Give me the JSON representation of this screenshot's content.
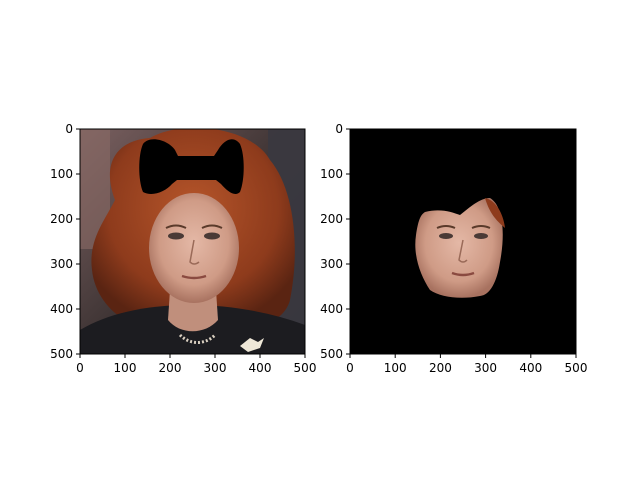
{
  "chart_data": [
    {
      "type": "image",
      "panel": "left",
      "title": "",
      "xlabel": "",
      "ylabel": "",
      "xlim": [
        0,
        500
      ],
      "ylim": [
        500,
        0
      ],
      "xticks": [
        0,
        100,
        200,
        300,
        400,
        500
      ],
      "yticks": [
        0,
        100,
        200,
        300,
        400,
        500
      ],
      "content": "face photo with black bow-tie shaped overlay at top center",
      "overlay": {
        "shape": "bow-tie",
        "color": "#000000",
        "x_range": [
          135,
          350
        ],
        "y_range": [
          20,
          150
        ]
      }
    },
    {
      "type": "image",
      "panel": "right",
      "title": "",
      "xlabel": "",
      "ylabel": "",
      "xlim": [
        0,
        500
      ],
      "ylim": [
        500,
        0
      ],
      "xticks": [
        0,
        100,
        200,
        300,
        400,
        500
      ],
      "yticks": [
        0,
        100,
        200,
        300,
        400,
        500
      ],
      "content": "black background with segmented face region",
      "background_color": "#000000",
      "face_region": {
        "x_range": [
          145,
          345
        ],
        "y_range": [
          140,
          370
        ]
      }
    }
  ],
  "colors": {
    "hair": "#8e3b1c",
    "hair_light": "#b5552a",
    "skin": "#d8a692",
    "skin_shade": "#b8846f",
    "jacket": "#1c1c20",
    "background_left": "#4a3a3a",
    "mask": "#000000"
  }
}
